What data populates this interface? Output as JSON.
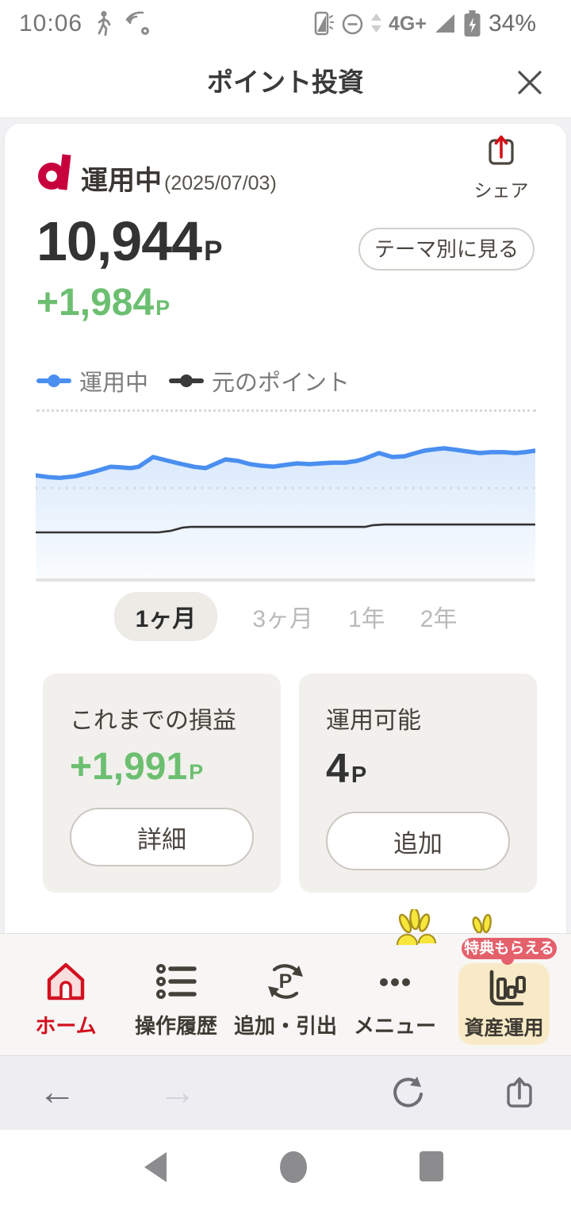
{
  "status_bar": {
    "time": "10:06",
    "network": "4G+",
    "battery": "34%"
  },
  "header": {
    "title": "ポイント投資"
  },
  "account": {
    "status_label": "運用中",
    "as_of": "(2025/07/03)",
    "share_label": "シェア",
    "total_value": "10,944",
    "total_unit": "P",
    "gain_value": "+1,984",
    "gain_unit": "P",
    "theme_button_label": "テーマ別に見る"
  },
  "legend": {
    "series1": "運用中",
    "series2": "元のポイント"
  },
  "periods": {
    "items": [
      "1ヶ月",
      "3ヶ月",
      "1年",
      "2年"
    ],
    "selected": "1ヶ月"
  },
  "summary_cards": {
    "profit": {
      "label": "これまでの損益",
      "value": "+1,991",
      "unit": "P",
      "button_label": "詳細"
    },
    "available": {
      "label": "運用可能",
      "value": "4",
      "unit": "P",
      "button_label": "追加"
    }
  },
  "bottom_nav": {
    "badge": "特典もらえる",
    "items": [
      {
        "label": "ホーム"
      },
      {
        "label": "操作履歴"
      },
      {
        "label": "追加・引出"
      },
      {
        "label": "メニュー"
      },
      {
        "label": "資産運用"
      }
    ]
  },
  "colors": {
    "accent_red": "#c7003d",
    "home_red": "#d2101f",
    "gain_green": "#6cbf70",
    "chart_blue": "#4a8ff0",
    "badge_pink": "#e4616c",
    "asset_card_yellow": "#f8eac6"
  },
  "chart_data": {
    "type": "area",
    "title": "ポイント投資 運用推移（1ヶ月）",
    "axes_visible": false,
    "grid": "two dotted horizontal gridlines (top of plot and ~45% height); solid gray baseline at bottom",
    "legend_position": "top",
    "series": [
      {
        "name": "運用中",
        "color": "#4a8ff0",
        "style": "line_with_area_fill",
        "points_pct": [
          [
            0,
            38
          ],
          [
            2.4,
            39
          ],
          [
            4.8,
            39.5
          ],
          [
            8,
            38.5
          ],
          [
            12,
            35.6
          ],
          [
            15,
            33
          ],
          [
            16.7,
            33.3
          ],
          [
            19,
            33.8
          ],
          [
            20.6,
            33
          ],
          [
            23.5,
            27.3
          ],
          [
            25.4,
            28.7
          ],
          [
            28.6,
            31
          ],
          [
            31.7,
            33
          ],
          [
            34,
            33.8
          ],
          [
            38,
            28.7
          ],
          [
            40.5,
            29.6
          ],
          [
            42.9,
            31.5
          ],
          [
            45.2,
            32.4
          ],
          [
            47.6,
            32.9
          ],
          [
            50,
            31.9
          ],
          [
            52.4,
            31
          ],
          [
            54.8,
            31.5
          ],
          [
            57,
            31
          ],
          [
            59.5,
            30.6
          ],
          [
            61.9,
            30.6
          ],
          [
            64.3,
            29.6
          ],
          [
            65.9,
            28.2
          ],
          [
            68.7,
            25
          ],
          [
            71.4,
            27.3
          ],
          [
            73.8,
            26.9
          ],
          [
            75.4,
            25.5
          ],
          [
            77.8,
            23.6
          ],
          [
            80.2,
            22.7
          ],
          [
            81.7,
            22.2
          ],
          [
            84.1,
            23.1
          ],
          [
            86.5,
            24.1
          ],
          [
            88.9,
            25
          ],
          [
            91.3,
            24.5
          ],
          [
            93.7,
            24.5
          ],
          [
            96,
            25
          ],
          [
            97.9,
            24.5
          ],
          [
            100,
            23.6
          ]
        ]
      },
      {
        "name": "元のポイント",
        "color": "#333333",
        "style": "line",
        "points_pct": [
          [
            0,
            71.3
          ],
          [
            24.6,
            71.3
          ],
          [
            27,
            70.4
          ],
          [
            29.4,
            68.5
          ],
          [
            31,
            68.1
          ],
          [
            65.9,
            68.1
          ],
          [
            67.5,
            67.1
          ],
          [
            69.8,
            66.7
          ],
          [
            100,
            66.7
          ]
        ]
      }
    ],
    "gridline_y_pct": [
      0,
      45.4
    ],
    "note": "x_pct runs left→right over the selected 1ヶ月 window; y_pct runs top→bottom of the plot box; the app shows no numeric axis labels"
  }
}
